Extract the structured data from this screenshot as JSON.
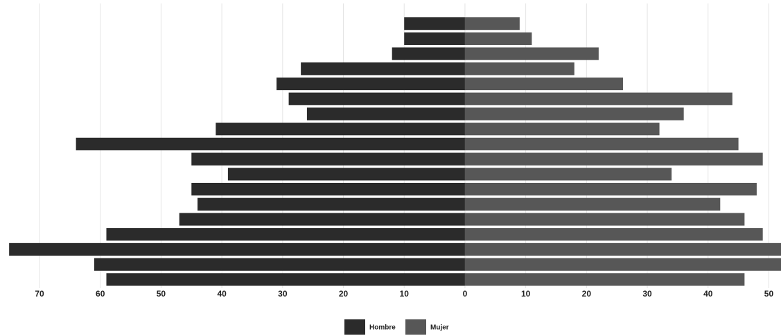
{
  "chart_data": {
    "type": "pyramid",
    "categories": [
      null,
      null,
      null,
      null,
      null,
      null,
      null,
      null,
      null,
      null,
      null,
      null,
      null,
      null,
      null,
      null,
      null,
      null
    ],
    "series": [
      {
        "name": "Hombre",
        "color": "#2b2b2b",
        "values": [
          -10,
          -10,
          -12,
          -27,
          -31,
          -29,
          -26,
          -41,
          -64,
          -45,
          -39,
          -45,
          -44,
          -47,
          -59,
          -75,
          -61,
          -59
        ]
      },
      {
        "name": "Mujer",
        "color": "#575757",
        "values": [
          9,
          11,
          22,
          18,
          26,
          44,
          36,
          32,
          45,
          49,
          34,
          48,
          42,
          46,
          49,
          52,
          52,
          46
        ]
      }
    ],
    "xlim": [
      -76.5,
      52
    ],
    "xticks": [
      {
        "value": -70,
        "label": "70"
      },
      {
        "value": -60,
        "label": "60"
      },
      {
        "value": -50,
        "label": "50"
      },
      {
        "value": -40,
        "label": "40"
      },
      {
        "value": -30,
        "label": "30"
      },
      {
        "value": -20,
        "label": "20"
      },
      {
        "value": -10,
        "label": "10"
      },
      0,
      10,
      20,
      30,
      40,
      50
    ],
    "grid": true,
    "legend": "bottom"
  }
}
